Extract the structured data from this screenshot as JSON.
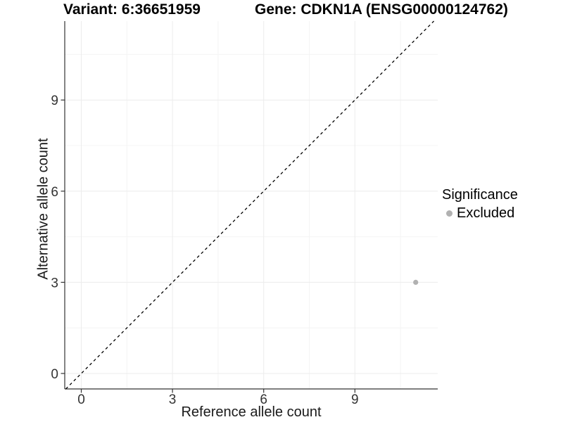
{
  "chart_data": {
    "type": "scatter",
    "title_left": "Variant: 6:36651959",
    "title_right": "Gene: CDKN1A (ENSG00000124762)",
    "xlabel": "Reference allele count",
    "ylabel": "Alternative allele count",
    "x_ticks": [
      0,
      3,
      6,
      9
    ],
    "y_ticks": [
      0,
      3,
      6,
      9
    ],
    "xlim": [
      -0.55,
      11.7
    ],
    "ylim": [
      -0.55,
      11.6
    ],
    "grid": "major-and-minor",
    "minor_step": 1.5,
    "legend": {
      "title": "Significance",
      "position": "right",
      "entries": [
        {
          "label": "Excluded",
          "color": "#b1b1b1"
        }
      ]
    },
    "series": [
      {
        "name": "Excluded",
        "color": "#b1b1b1",
        "points": [
          {
            "x": 11,
            "y": 3
          }
        ]
      }
    ],
    "reference_line": {
      "type": "identity",
      "equation": "y = x",
      "style": "dashed",
      "color": "#000000"
    },
    "colors": {
      "axis_line": "#333333",
      "tick_text": "#333333",
      "major_grid": "#ececec",
      "minor_grid": "#f4f4f4",
      "background": "#ffffff"
    }
  }
}
